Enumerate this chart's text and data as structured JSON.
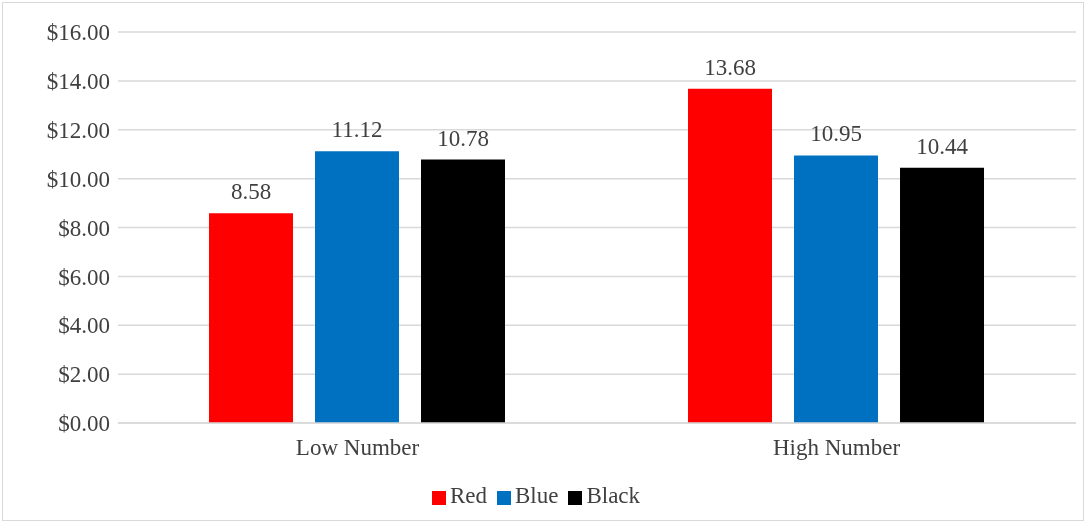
{
  "chart_data": {
    "type": "bar",
    "categories": [
      "Low Number",
      "High Number"
    ],
    "series": [
      {
        "name": "Red",
        "color": "#ff0000",
        "values": [
          8.58,
          13.68
        ]
      },
      {
        "name": "Blue",
        "color": "#0070c0",
        "values": [
          11.12,
          10.95
        ]
      },
      {
        "name": "Black",
        "color": "#000000",
        "values": [
          10.78,
          10.44
        ]
      }
    ],
    "ylim": [
      0,
      16
    ],
    "yticks": [
      {
        "value": 0,
        "label": "$0.00"
      },
      {
        "value": 2,
        "label": "$2.00"
      },
      {
        "value": 4,
        "label": "$4.00"
      },
      {
        "value": 6,
        "label": "$6.00"
      },
      {
        "value": 8,
        "label": "$8.00"
      },
      {
        "value": 10,
        "label": "$10.00"
      },
      {
        "value": 12,
        "label": "$12.00"
      },
      {
        "value": 14,
        "label": "$14.00"
      },
      {
        "value": 16,
        "label": "$16.00"
      }
    ],
    "grid": "y",
    "legend": "bottom",
    "data_labels": true
  }
}
